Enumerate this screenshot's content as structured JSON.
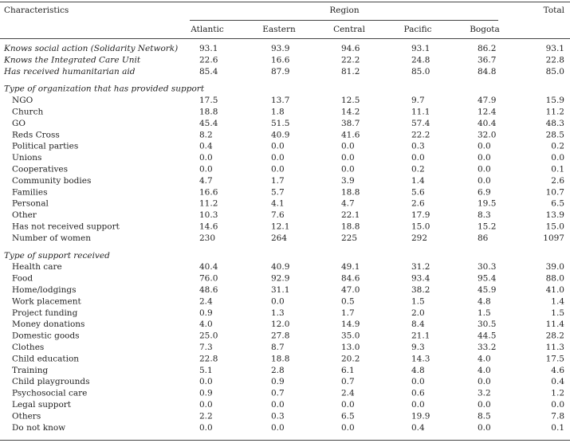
{
  "table": {
    "header": {
      "characteristics": "Characteristics",
      "region": "Region",
      "total": "Total",
      "regions": [
        "Atlantic",
        "Eastern",
        "Central",
        "Pacific",
        "Bogota"
      ]
    },
    "top_rows": [
      {
        "label": "Knows social action (Solidarity Network)",
        "values": [
          "93.1",
          "93.9",
          "94.6",
          "93.1",
          "86.2",
          "93.1"
        ]
      },
      {
        "label": "Knows the Integrated Care Unit",
        "values": [
          "22.6",
          "16.6",
          "22.2",
          "24.8",
          "36.7",
          "22.8"
        ]
      },
      {
        "label": "Has received humanitarian aid",
        "values": [
          "85.4",
          "87.9",
          "81.2",
          "85.0",
          "84.8",
          "85.0"
        ]
      }
    ],
    "sections": [
      {
        "title": "Type of organization that has provided support",
        "rows": [
          {
            "label": "NGO",
            "values": [
              "17.5",
              "13.7",
              "12.5",
              "9.7",
              "47.9",
              "15.9"
            ]
          },
          {
            "label": "Church",
            "values": [
              "18.8",
              "1.8",
              "14.2",
              "11.1",
              "12.4",
              "11.2"
            ]
          },
          {
            "label": "GO",
            "values": [
              "45.4",
              "51.5",
              "38.7",
              "57.4",
              "40.4",
              "48.3"
            ]
          },
          {
            "label": "Reds Cross",
            "values": [
              "8.2",
              "40.9",
              "41.6",
              "22.2",
              "32.0",
              "28.5"
            ]
          },
          {
            "label": "Political parties",
            "values": [
              "0.4",
              "0.0",
              "0.0",
              "0.3",
              "0.0",
              "0.2"
            ]
          },
          {
            "label": "Unions",
            "values": [
              "0.0",
              "0.0",
              "0.0",
              "0.0",
              "0.0",
              "0.0"
            ]
          },
          {
            "label": "Cooperatives",
            "values": [
              "0.0",
              "0.0",
              "0.0",
              "0.2",
              "0.0",
              "0.1"
            ]
          },
          {
            "label": "Community bodies",
            "values": [
              "4.7",
              "1.7",
              "3.9",
              "1.4",
              "0.0",
              "2.6"
            ]
          },
          {
            "label": "Families",
            "values": [
              "16.6",
              "5.7",
              "18.8",
              "5.6",
              "6.9",
              "10.7"
            ]
          },
          {
            "label": "Personal",
            "values": [
              "11.2",
              "4.1",
              "4.7",
              "2.6",
              "19.5",
              "6.5"
            ]
          },
          {
            "label": "Other",
            "values": [
              "10.3",
              "7.6",
              "22.1",
              "17.9",
              "8.3",
              "13.9"
            ]
          },
          {
            "label": "Has not received support",
            "values": [
              "14.6",
              "12.1",
              "18.8",
              "15.0",
              "15.2",
              "15.0"
            ]
          },
          {
            "label": "Number of women",
            "values": [
              "230",
              "264",
              "225",
              "292",
              "86",
              "1097"
            ]
          }
        ]
      },
      {
        "title": "Type of support received",
        "rows": [
          {
            "label": "Health care",
            "values": [
              "40.4",
              "40.9",
              "49.1",
              "31.2",
              "30.3",
              "39.0"
            ]
          },
          {
            "label": "Food",
            "values": [
              "76.0",
              "92.9",
              "84.6",
              "93.4",
              "95.4",
              "88.0"
            ]
          },
          {
            "label": "Home/lodgings",
            "values": [
              "48.6",
              "31.1",
              "47.0",
              "38.2",
              "45.9",
              "41.0"
            ]
          },
          {
            "label": "Work placement",
            "values": [
              "2.4",
              "0.0",
              "0.5",
              "1.5",
              "4.8",
              "1.4"
            ]
          },
          {
            "label": "Project funding",
            "values": [
              "0.9",
              "1.3",
              "1.7",
              "2.0",
              "1.5",
              "1.5"
            ]
          },
          {
            "label": "Money donations",
            "values": [
              "4.0",
              "12.0",
              "14.9",
              "8.4",
              "30.5",
              "11.4"
            ]
          },
          {
            "label": "Domestic goods",
            "values": [
              "25.0",
              "27.8",
              "35.0",
              "21.1",
              "44.5",
              "28.2"
            ]
          },
          {
            "label": "Clothes",
            "values": [
              "7.3",
              "8.7",
              "13.0",
              "9.3",
              "33.2",
              "11.3"
            ]
          },
          {
            "label": "Child education",
            "values": [
              "22.8",
              "18.8",
              "20.2",
              "14.3",
              "4.0",
              "17.5"
            ]
          },
          {
            "label": "Training",
            "values": [
              "5.1",
              "2.8",
              "6.1",
              "4.8",
              "4.0",
              "4.6"
            ]
          },
          {
            "label": "Child playgrounds",
            "values": [
              "0.0",
              "0.9",
              "0.7",
              "0.0",
              "0.0",
              "0.4"
            ]
          },
          {
            "label": "Psychosocial care",
            "values": [
              "0.9",
              "0.7",
              "2.4",
              "0.6",
              "3.2",
              "1.2"
            ]
          },
          {
            "label": "Legal support",
            "values": [
              "0.0",
              "0.0",
              "0.0",
              "0.0",
              "0.0",
              "0.0"
            ]
          },
          {
            "label": "Others",
            "values": [
              "2.2",
              "0.3",
              "6.5",
              "19.9",
              "8.5",
              "7.8"
            ]
          },
          {
            "label": "Do not know",
            "values": [
              "0.0",
              "0.0",
              "0.0",
              "0.4",
              "0.0",
              "0.1"
            ]
          }
        ]
      }
    ]
  }
}
